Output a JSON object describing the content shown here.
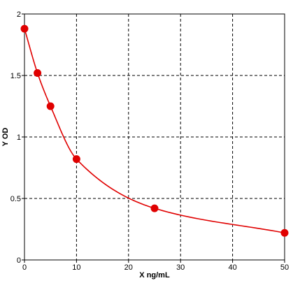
{
  "chart_data": {
    "type": "scatter",
    "title": "",
    "xlabel": "X ng/mL",
    "ylabel": "Y OD",
    "xlim": [
      0,
      50
    ],
    "ylim": [
      0,
      2
    ],
    "x_ticks": [
      0,
      10,
      20,
      30,
      40,
      50
    ],
    "y_ticks": [
      0,
      0.5,
      1,
      1.5,
      2
    ],
    "x_tick_labels": [
      "0",
      "10",
      "20",
      "30",
      "40",
      "50"
    ],
    "y_tick_labels": [
      "0",
      "0.5",
      "1",
      "1.5",
      "2"
    ],
    "grid": true,
    "grid_style": "dashed",
    "series": [
      {
        "points": [
          {
            "x": 0,
            "y": 1.88
          },
          {
            "x": 2.5,
            "y": 1.52
          },
          {
            "x": 5,
            "y": 1.25
          },
          {
            "x": 10,
            "y": 0.82
          },
          {
            "x": 25,
            "y": 0.42
          },
          {
            "x": 50,
            "y": 0.22
          }
        ],
        "fit_curve": true,
        "color": "#e00000"
      }
    ]
  }
}
